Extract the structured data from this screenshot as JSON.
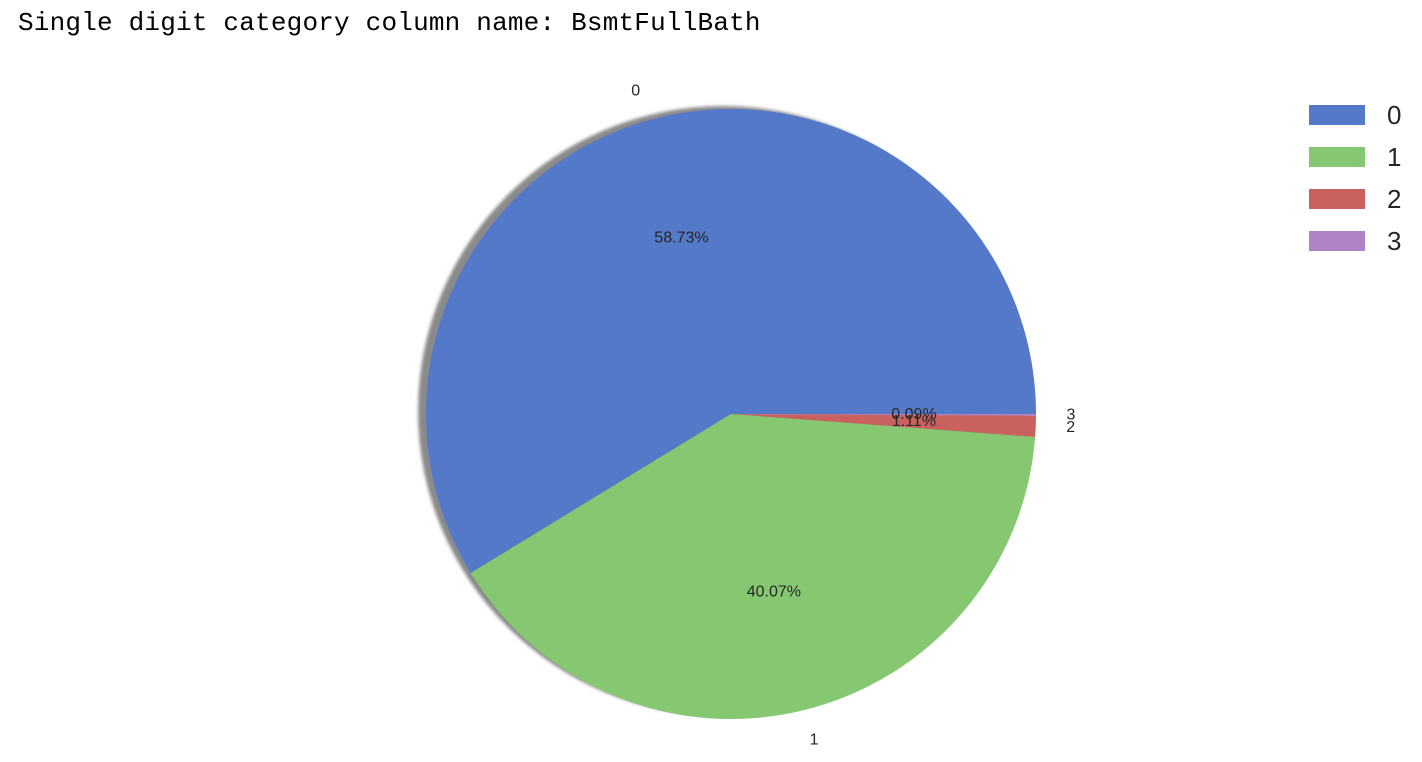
{
  "header": {
    "prefix": "Single digit category column name: ",
    "column_name": "BsmtFullBath"
  },
  "chart_data": {
    "type": "pie",
    "title": "",
    "categories": [
      "0",
      "1",
      "2",
      "3"
    ],
    "values": [
      58.73,
      40.07,
      1.11,
      0.09
    ],
    "value_labels": [
      "58.73%",
      "40.07%",
      "1.11%",
      "0.09%"
    ],
    "start_angle_deg": 0,
    "direction": "counterclockwise",
    "shadow": true,
    "colors": [
      "#5479c9",
      "#86c872",
      "#c9625f",
      "#ae82c4"
    ],
    "legend": {
      "placement": "top-right",
      "entries": [
        "0",
        "1",
        "2",
        "3"
      ]
    }
  }
}
